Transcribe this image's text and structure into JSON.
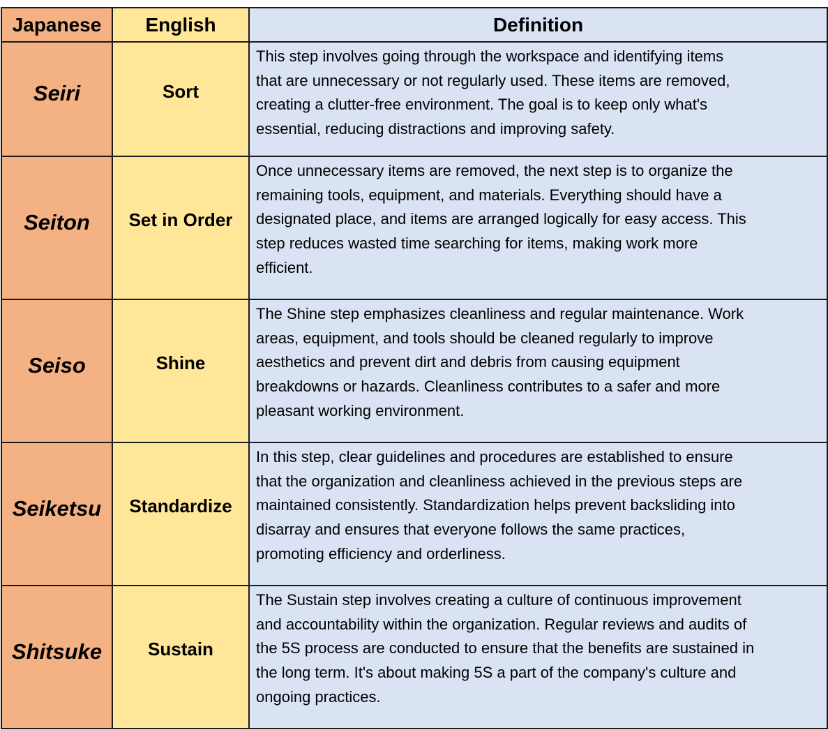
{
  "headers": {
    "japanese": "Japanese",
    "english": "English",
    "definition": "Definition"
  },
  "colors": {
    "japanese_column": "#F4B183",
    "english_column": "#FFE699",
    "definition_column": "#DAE3F3"
  },
  "rows": [
    {
      "japanese": "Seiri",
      "english": "Sort",
      "definition": [
        "This step involves going through the workspace and identifying items",
        "that are unnecessary or not regularly used. These items are removed,",
        "creating a clutter-free environment. The goal is to keep only what's",
        "essential, reducing distractions and improving safety."
      ]
    },
    {
      "japanese": "Seiton",
      "english": "Set in Order",
      "definition": [
        "Once unnecessary items are removed, the next step is to organize the",
        "remaining tools, equipment, and materials. Everything should have a",
        "designated place, and items are arranged logically for easy access. This",
        "step reduces wasted time searching for items, making work more",
        "efficient."
      ]
    },
    {
      "japanese": "Seiso",
      "english": "Shine",
      "definition": [
        "The Shine step emphasizes cleanliness and regular maintenance. Work",
        "areas, equipment, and tools should be cleaned regularly to improve",
        "aesthetics and prevent dirt and debris from causing equipment",
        "breakdowns or hazards. Cleanliness contributes to a safer and more",
        "pleasant working environment."
      ]
    },
    {
      "japanese": "Seiketsu",
      "english": "Standardize",
      "definition": [
        "In this step, clear guidelines and procedures are established to ensure",
        "that the organization and cleanliness achieved in the previous steps are",
        "maintained consistently. Standardization helps prevent backsliding into",
        "disarray and ensures that everyone follows the same practices,",
        "promoting efficiency and orderliness."
      ]
    },
    {
      "japanese": "Shitsuke",
      "english": "Sustain",
      "definition": [
        "The Sustain step involves creating a culture of continuous improvement",
        "and accountability within the organization. Regular reviews and audits of",
        "the 5S process are conducted to ensure that the benefits are sustained in",
        "the long term. It's about making 5S a part of the company's culture and",
        "ongoing practices."
      ]
    }
  ]
}
